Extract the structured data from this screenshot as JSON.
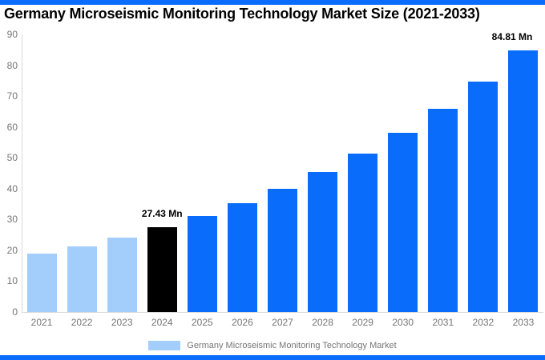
{
  "frame": {
    "top_bar_color": "#0a6cfa",
    "bottom_bar_color": "#0a6cfa",
    "background": "#ffffff"
  },
  "title": "Germany Microseismic Monitoring Technology Market Size (2021-2033)",
  "chart_data": {
    "type": "bar",
    "title": "Germany Microseismic Monitoring Technology Market Size (2021-2033)",
    "categories": [
      "2021",
      "2022",
      "2023",
      "2024",
      "2025",
      "2026",
      "2027",
      "2028",
      "2029",
      "2030",
      "2031",
      "2032",
      "2033"
    ],
    "series": [
      {
        "name": "Germany Microseismic Monitoring Technology Market",
        "values": [
          18.83,
          21.35,
          24.2,
          27.43,
          31.1,
          35.25,
          39.96,
          45.3,
          51.35,
          58.21,
          65.99,
          74.81,
          84.81
        ]
      }
    ],
    "bar_colors": [
      "#a3cdfa",
      "#a3cdfa",
      "#a3cdfa",
      "#000000",
      "#0a6cfa",
      "#0a6cfa",
      "#0a6cfa",
      "#0a6cfa",
      "#0a6cfa",
      "#0a6cfa",
      "#0a6cfa",
      "#0a6cfa",
      "#0a6cfa"
    ],
    "data_labels": [
      {
        "category": "2024",
        "text": "27.43 Mn"
      },
      {
        "category": "2033",
        "text": "84.81 Mn"
      }
    ],
    "xlabel": "",
    "ylabel": "",
    "ylim": [
      0,
      90
    ],
    "ytick_step": 10,
    "ytick_labels": [
      "0",
      "10",
      "20",
      "30",
      "40",
      "50",
      "60",
      "70",
      "80",
      "90"
    ],
    "grid": false,
    "legend_position": "bottom"
  },
  "legend": {
    "swatch_color": "#a3cdfa",
    "label": "Germany Microseismic Monitoring Technology Market"
  },
  "styles": {
    "axis_line_color": "#d9d9d9",
    "tick_label_color": "#757575",
    "value_label_color": "#000000",
    "title_color": "#000000"
  }
}
